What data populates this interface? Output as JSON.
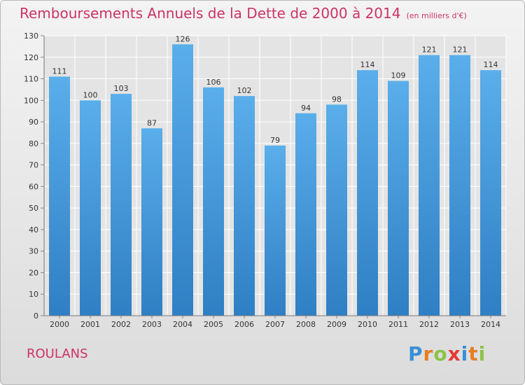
{
  "title": "Remboursements Annuels de la Dette de 2000 à 2014",
  "unit_note": "(en milliers d'€)",
  "city": "ROULANS",
  "logo": {
    "letters": [
      "P",
      "r",
      "o",
      "x",
      "i",
      "t",
      "i"
    ],
    "colors": [
      "#3a8fd6",
      "#e67e22",
      "#8bc34a",
      "#e53935",
      "#3a8fd6",
      "#e67e22",
      "#8bc34a"
    ]
  },
  "colors": {
    "bar": "#4a9ee0",
    "bar_dark": "#2f7fc4",
    "title": "#cc3366",
    "text": "#333333"
  },
  "chart_data": {
    "type": "bar",
    "categories": [
      "2000",
      "2001",
      "2002",
      "2003",
      "2004",
      "2005",
      "2006",
      "2007",
      "2008",
      "2009",
      "2010",
      "2011",
      "2012",
      "2013",
      "2014"
    ],
    "values": [
      111,
      100,
      103,
      87,
      126,
      106,
      102,
      79,
      94,
      98,
      114,
      109,
      121,
      121,
      114
    ],
    "ylim": [
      0,
      130
    ],
    "yticks": [
      0,
      10,
      20,
      30,
      40,
      50,
      60,
      70,
      80,
      90,
      100,
      110,
      120,
      130
    ],
    "grid": true
  }
}
